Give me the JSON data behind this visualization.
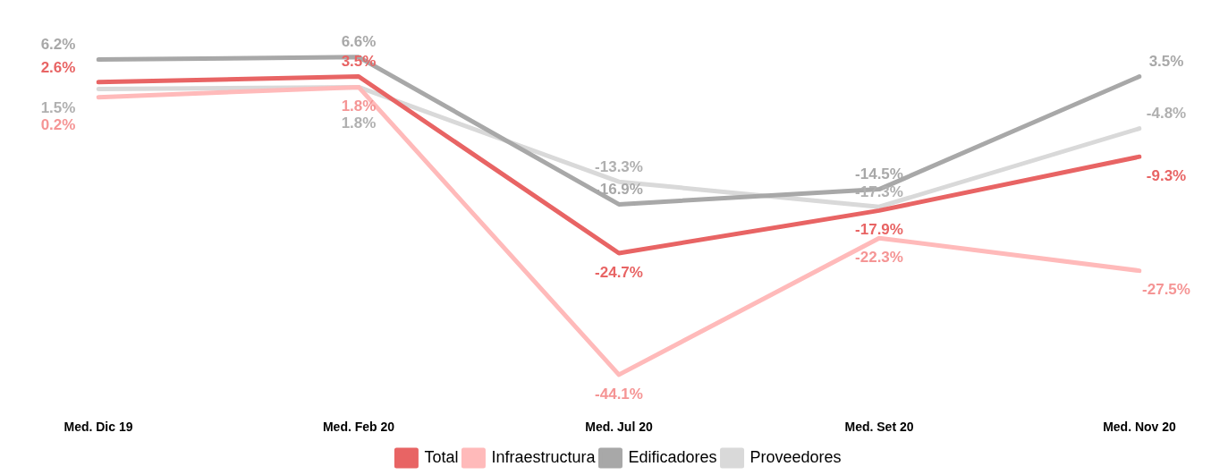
{
  "chart_data": {
    "type": "line",
    "categories": [
      "Med. Dic 19",
      "Med. Feb 20",
      "Med. Jul 20",
      "Med. Set 20",
      "Med. Nov 20"
    ],
    "series": [
      {
        "name": "Total",
        "color": "#e86464",
        "values": [
          2.6,
          3.5,
          -24.7,
          -17.9,
          -9.3
        ],
        "value_labels": [
          "2.6%",
          "3.5%",
          "-24.7%",
          "-17.9%",
          "-9.3%"
        ]
      },
      {
        "name": "Infraestructura",
        "color": "#ffbaba",
        "values": [
          0.2,
          1.8,
          -44.1,
          -22.3,
          -27.5
        ],
        "value_labels": [
          "0.2%",
          "1.8%",
          "-44.1%",
          "-22.3%",
          "-27.5%"
        ]
      },
      {
        "name": "Edificadores",
        "color": "#a8a8a8",
        "values": [
          6.2,
          6.6,
          -16.9,
          -14.5,
          3.5
        ],
        "value_labels": [
          "6.2%",
          "6.6%",
          "-16.9%",
          "-14.5%",
          "3.5%"
        ]
      },
      {
        "name": "Proveedores",
        "color": "#d9d9d9",
        "values": [
          1.5,
          1.8,
          -13.3,
          -17.3,
          -4.8
        ],
        "value_labels": [
          "1.5%",
          "1.8%",
          "-13.3%",
          "-17.3%",
          "-4.8%"
        ]
      }
    ],
    "tick_labels": "x",
    "grid": false,
    "legend": "bottom",
    "marker": "none",
    "line_style": "solid"
  }
}
